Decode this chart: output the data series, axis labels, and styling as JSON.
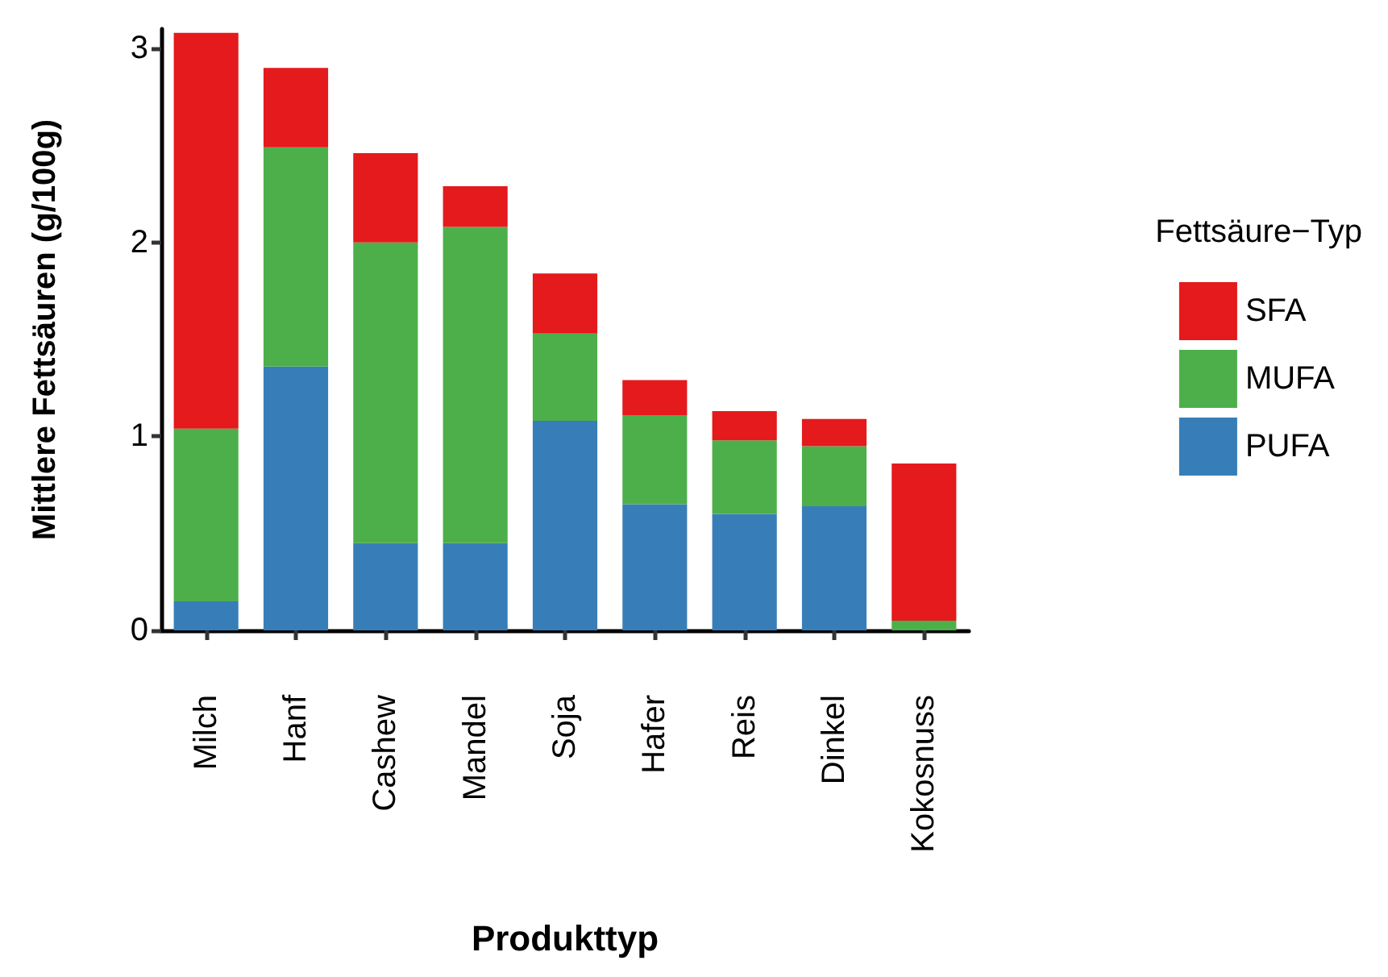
{
  "chart_data": {
    "type": "bar",
    "stacked": true,
    "xlabel": "Produkttyp",
    "ylabel": "Mittlere Fettsäuren (g/100g)",
    "legend_title": "Fettsäure−Typ",
    "legend": "right",
    "grid": false,
    "categories": [
      "Milch",
      "Hanf",
      "Cashew",
      "Mandel",
      "Soja",
      "Hafer",
      "Reis",
      "Dinkel",
      "Kokosnuss"
    ],
    "ylim": [
      0,
      3.1
    ],
    "yticks": [
      0,
      1,
      2,
      3
    ],
    "series": [
      {
        "name": "PUFA",
        "color": "#377eb8",
        "values": [
          0.15,
          1.36,
          0.45,
          0.45,
          1.08,
          0.65,
          0.6,
          0.64,
          0
        ]
      },
      {
        "name": "MUFA",
        "color": "#4daf4a",
        "values": [
          0.89,
          1.13,
          1.55,
          1.63,
          0.45,
          0.46,
          0.38,
          0.31,
          0.05
        ]
      },
      {
        "name": "SFA",
        "color": "#e41a1c",
        "values": [
          2.04,
          0.41,
          0.46,
          0.21,
          0.31,
          0.18,
          0.15,
          0.14,
          0.81
        ]
      }
    ]
  }
}
